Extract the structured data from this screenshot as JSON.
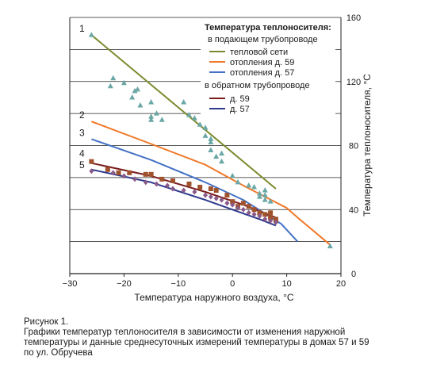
{
  "chart_data": {
    "type": "scatter",
    "xlabel": "Температура наружного воздуха, °C",
    "ylabel": "Температура теплоносителя, °C",
    "xlim": [
      -30,
      20
    ],
    "ylim": [
      0,
      160
    ],
    "x_ticks": [
      "−30",
      "−20",
      "−10",
      "0",
      "10",
      "20"
    ],
    "y_ticks": [
      "0",
      "40",
      "80",
      "120",
      "160"
    ],
    "grid": "horizontal",
    "legend": {
      "position": "top-right",
      "title": "Температура теплоносителя:",
      "group_supply": "в подающем трубопроводе",
      "group_return": "в обратном трубопроводе",
      "entries": [
        "тепловой сети",
        "отопления д. 59",
        "отопления д. 57",
        "д. 59",
        "д. 57"
      ]
    },
    "line_labels": [
      "1",
      "2",
      "3",
      "4",
      "5"
    ],
    "series": [
      {
        "name": "тепловой сети",
        "label": "1",
        "color": "#7a8a2e",
        "marker": "triangle",
        "marker_color": "#6aa7a6",
        "line": [
          [
            -26,
            149
          ],
          [
            8,
            53
          ]
        ],
        "points": [
          [
            -26,
            149
          ],
          [
            -22,
            122
          ],
          [
            -20,
            119
          ],
          [
            -22.5,
            117
          ],
          [
            -18.5,
            110
          ],
          [
            -18,
            114
          ],
          [
            -17.5,
            115
          ],
          [
            -15,
            107
          ],
          [
            -17,
            105
          ],
          [
            -14,
            100
          ],
          [
            -15,
            98
          ],
          [
            -15,
            96
          ],
          [
            -13,
            96
          ],
          [
            -9,
            107
          ],
          [
            -8,
            99
          ],
          [
            -7,
            97
          ],
          [
            -6,
            93
          ],
          [
            -5,
            91
          ],
          [
            -5,
            86
          ],
          [
            -4,
            84
          ],
          [
            -4,
            82
          ],
          [
            -2,
            75
          ],
          [
            -4,
            77
          ],
          [
            -3,
            73
          ],
          [
            -2,
            70
          ],
          [
            0,
            61
          ],
          [
            1,
            57
          ],
          [
            3,
            55
          ],
          [
            4,
            54
          ],
          [
            6,
            52
          ],
          [
            5,
            50
          ],
          [
            6,
            49
          ],
          [
            5,
            48
          ],
          [
            6,
            46
          ],
          [
            7,
            45
          ],
          [
            18,
            17
          ]
        ]
      },
      {
        "name": "отопления д. 59",
        "label": "2",
        "color": "#f07828",
        "marker": "none",
        "line": [
          [
            -26,
            95
          ],
          [
            -15,
            81
          ],
          [
            -5,
            68
          ],
          [
            2,
            55
          ],
          [
            10,
            41
          ],
          [
            12,
            35
          ],
          [
            18,
            18
          ]
        ]
      },
      {
        "name": "отопления д. 57",
        "label": "3",
        "color": "#4472c4",
        "marker": "none",
        "line": [
          [
            -26,
            84
          ],
          [
            -15,
            71
          ],
          [
            -5,
            57
          ],
          [
            2,
            46
          ],
          [
            9,
            31
          ],
          [
            12,
            20
          ]
        ]
      },
      {
        "name": "д. 59",
        "label": "4",
        "color": "#7b1e1e",
        "marker": "square",
        "marker_color": "#a0522d",
        "line": [
          [
            -26,
            69
          ],
          [
            -15,
            61
          ],
          [
            -5,
            51
          ],
          [
            2,
            43
          ],
          [
            5,
            39
          ],
          [
            8,
            35
          ]
        ],
        "points": [
          [
            -26,
            70
          ],
          [
            -23,
            65
          ],
          [
            -21,
            63
          ],
          [
            -19,
            63
          ],
          [
            -16,
            62
          ],
          [
            -15,
            62
          ],
          [
            -13,
            59
          ],
          [
            -11,
            58
          ],
          [
            -8,
            56
          ],
          [
            -6,
            54
          ],
          [
            -4,
            53
          ],
          [
            -3,
            52
          ],
          [
            -1,
            49
          ],
          [
            0,
            45
          ],
          [
            1,
            42
          ],
          [
            2,
            44
          ],
          [
            3,
            42
          ],
          [
            4,
            40
          ],
          [
            5,
            38
          ],
          [
            6,
            37
          ],
          [
            7,
            38
          ],
          [
            7,
            35
          ],
          [
            8,
            34
          ],
          [
            8,
            33
          ]
        ]
      },
      {
        "name": "д. 57",
        "label": "5",
        "color": "#2e3a8c",
        "marker": "diamond",
        "marker_color": "#8a5a8a",
        "line": [
          [
            -26,
            65
          ],
          [
            -15,
            57
          ],
          [
            -5,
            46
          ],
          [
            0,
            40
          ],
          [
            5,
            34
          ],
          [
            8,
            30
          ]
        ],
        "points": [
          [
            -26,
            64
          ],
          [
            -22,
            63
          ],
          [
            -20,
            61
          ],
          [
            -18,
            59
          ],
          [
            -16,
            57
          ],
          [
            -14,
            56
          ],
          [
            -12,
            55
          ],
          [
            -11,
            53
          ],
          [
            -9,
            52
          ],
          [
            -7,
            51
          ],
          [
            -5,
            49
          ],
          [
            -4,
            48
          ],
          [
            -3,
            47
          ],
          [
            -2,
            46
          ],
          [
            -1,
            44
          ],
          [
            0,
            43
          ],
          [
            1,
            41
          ],
          [
            2,
            40
          ],
          [
            3,
            38
          ],
          [
            4,
            37
          ],
          [
            5,
            36
          ],
          [
            6,
            34
          ],
          [
            7,
            33
          ],
          [
            8,
            32
          ]
        ]
      }
    ]
  },
  "caption": {
    "line1": "Рисунок 1.",
    "line2": "Графики температур теплоносителя в зависимости от изменения наружной",
    "line3": "температуры и данные среднесуточных измерений температуры в домах 57 и 59",
    "line4": "по ул. Обручева"
  }
}
